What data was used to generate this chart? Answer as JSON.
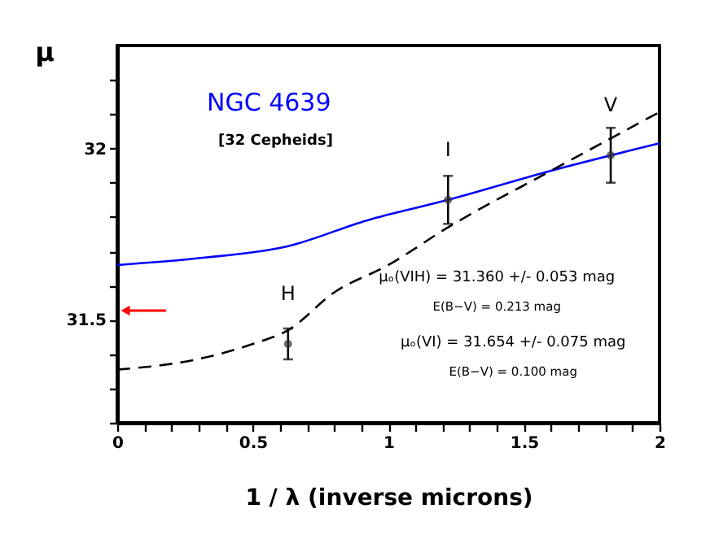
{
  "chart_data": {
    "type": "scatter",
    "title": "NGC 4639",
    "subtitle": "[32 Cepheids]",
    "xlabel": "1 / λ (inverse microns)",
    "ylabel": "μ",
    "series": [
      {
        "type": "line",
        "color": "#0000ff",
        "line_style": "solid",
        "marker": "none",
        "x": [
          0,
          0.3,
          0.63,
          0.92,
          1.22,
          1.6,
          2.0
        ],
        "values": [
          31.66,
          31.68,
          31.715,
          31.79,
          31.85,
          31.935,
          32.015
        ]
      },
      {
        "type": "line",
        "color": "#000000",
        "line_style": "dashed",
        "marker": "none",
        "x": [
          0,
          0.3,
          0.5,
          0.63,
          0.8,
          1.0,
          1.22,
          1.6,
          2.0
        ],
        "values": [
          31.355,
          31.386,
          31.43,
          31.47,
          31.58,
          31.66,
          31.77,
          31.935,
          32.106
        ]
      },
      {
        "color": "#333333",
        "marker": "circle",
        "x": [
          0.63,
          1.22,
          1.82
        ],
        "values": [
          31.43,
          31.85,
          31.98
        ],
        "errors": [
          0.045,
          0.07,
          0.08
        ]
      }
    ],
    "annotations": [
      {
        "text": "H",
        "x": 0.63,
        "y": 31.43
      },
      {
        "text": "I",
        "x": 1.22,
        "y": 31.85
      },
      {
        "text": "V",
        "x": 1.82,
        "y": 31.98
      },
      "μₒ(VIH) = 31.360 +/- 0.053 mag",
      "E(B−V) = 0.213 mag",
      "μₒ(VI) = 31.654 +/- 0.075 mag",
      "E(B−V) = 0.100 mag"
    ],
    "xlim": [
      0,
      2
    ],
    "ylim": [
      31.2,
      32.3
    ],
    "xticks": [
      0,
      {
        "value": 0.1,
        "label": null
      },
      {
        "value": 0.2,
        "label": null
      },
      {
        "value": 0.3,
        "label": null
      },
      {
        "value": 0.4,
        "label": null
      },
      0.5,
      {
        "value": 0.6,
        "label": null
      },
      {
        "value": 0.7,
        "label": null
      },
      {
        "value": 0.8,
        "label": null
      },
      {
        "value": 0.9,
        "label": null
      },
      1,
      {
        "value": 1.1,
        "label": null
      },
      {
        "value": 1.2,
        "label": null
      },
      {
        "value": 1.3,
        "label": null
      },
      {
        "value": 1.4,
        "label": null
      },
      1.5,
      {
        "value": 1.6,
        "label": null
      },
      {
        "value": 1.7,
        "label": null
      },
      {
        "value": 1.8,
        "label": null
      },
      {
        "value": 1.9,
        "label": null
      },
      2
    ],
    "yticks": [
      {
        "value": 31.2,
        "label": null
      },
      {
        "value": 31.3,
        "label": null
      },
      {
        "value": 31.4,
        "label": null
      },
      31.5,
      {
        "value": 31.6,
        "label": null
      },
      {
        "value": 31.7,
        "label": null
      },
      {
        "value": 31.8,
        "label": null
      },
      {
        "value": 31.9,
        "label": null
      },
      32,
      {
        "value": 32.1,
        "label": null
      },
      {
        "value": 32.2,
        "label": null
      }
    ],
    "grid": false
  }
}
